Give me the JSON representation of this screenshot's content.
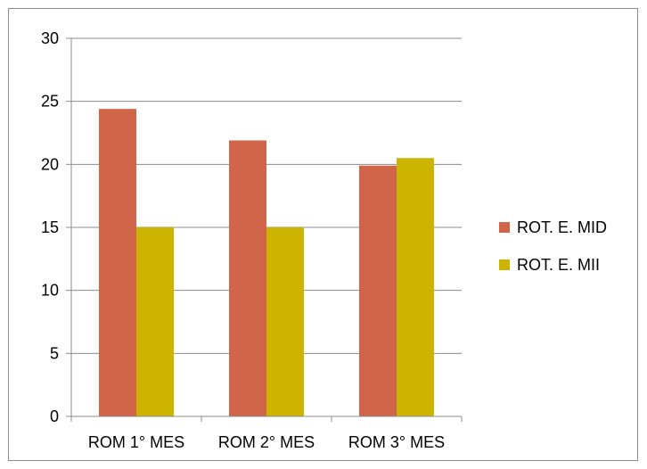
{
  "chart_data": {
    "type": "bar",
    "title": "",
    "xlabel": "",
    "ylabel": "",
    "categories": [
      "ROM 1° MES",
      "ROM 2° MES",
      "ROM 3° MES"
    ],
    "series": [
      {
        "name": "ROT. E. MID",
        "color": "#d0654a",
        "values": [
          24.4,
          21.9,
          19.9
        ]
      },
      {
        "name": "ROT. E. MII",
        "color": "#ccb400",
        "values": [
          15.0,
          15.0,
          20.5
        ]
      }
    ],
    "ylim": [
      0,
      30
    ],
    "yticks": [
      0,
      5,
      10,
      15,
      20,
      25,
      30
    ],
    "grid": true,
    "legend_position": "right"
  }
}
